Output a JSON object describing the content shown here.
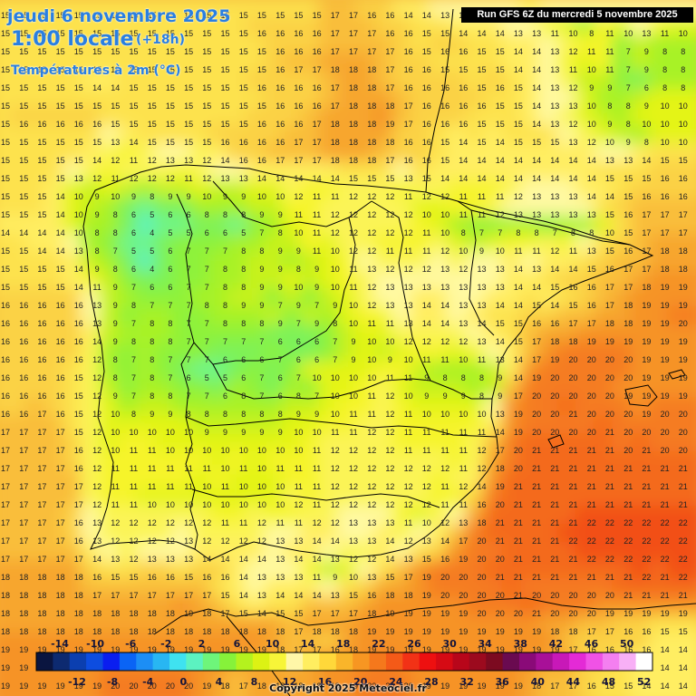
{
  "header": {
    "date": "jeudi 6 novembre 2025",
    "time": "1:00 locale",
    "lead": "(+18h)",
    "variable": "Températures à 2m (°C)"
  },
  "run": "Run GFS 6Z du mercredi 5 novembre 2025",
  "copyright": "Copyright 2025 Meteociel.fr",
  "legend": {
    "top_labels": [
      "-14",
      "-10",
      "-6",
      "-2",
      "2",
      "6",
      "10",
      "14",
      "18",
      "22",
      "26",
      "30",
      "34",
      "38",
      "42",
      "46",
      "50"
    ],
    "bottom_labels": [
      "-12",
      "-8",
      "-4",
      "0",
      "4",
      "8",
      "12",
      "16",
      "20",
      "24",
      "28",
      "32",
      "36",
      "40",
      "44",
      "48",
      "52"
    ],
    "colors": [
      "#0a1540",
      "#0d2a70",
      "#0b3fb0",
      "#0d4de0",
      "#0a1ef0",
      "#0a64f5",
      "#1c8ef5",
      "#28b6f2",
      "#3fe2f0",
      "#5cf2c0",
      "#6ef57a",
      "#86f23a",
      "#b4f21e",
      "#dcf214",
      "#f7f538",
      "#fff7a8",
      "#ffee60",
      "#ffd83a",
      "#f9b52a",
      "#f79622",
      "#f5781c",
      "#f45a18",
      "#f23216",
      "#ee1010",
      "#d60a14",
      "#b8061a",
      "#9c0a1e",
      "#7c0a20",
      "#6a0a50",
      "#8a0a78",
      "#a81098",
      "#c818b8",
      "#e42ad6",
      "#f052e6",
      "#f47ff0",
      "#f8b0f6",
      "#ffffff"
    ]
  },
  "temperature_grid": [
    "15 15 15 15 15 15 15 15 15 15 15 15 15 15 15 15 15 15 17 17 16 16 14 14 13 13 13 13 13 12 13 13 13 13 13 13 13 13",
    "15 15 15 15 15 15 15 15 15 15 15 15 15 15 16 16 16 16 17 17 17 16 16 15 15 14 14 14 13 13 11 10 8 11 10 13 11 10",
    "15 15 15 15 15 15 15 15 15 15 15 15 15 15 15 16 16 16 17 17 17 17 16 15 16 16 15 15 14 14 13 12 11 11 7 9 8 8",
    "15 15 15 15 15 15 15 15 15 15 15 15 15 15 15 16 17 17 18 18 18 17 16 16 15 15 15 15 14 14 13 11 10 11 7 9 8 8",
    "15 15 15 15 15 14 14 15 15 15 15 15 15 15 16 16 16 16 17 18 18 17 16 16 16 16 15 16 15 14 13 12 9 9 7 6 8 8",
    "15 15 15 15 15 15 15 15 15 15 15 15 15 15 15 16 16 16 17 18 18 18 17 16 16 16 16 15 15 14 13 13 10 8 8 9 10 10",
    "15 16 16 16 16 16 15 15 15 15 15 15 15 15 16 16 16 17 18 18 18 19 17 16 16 16 15 15 15 14 13 12 10 9 8 10 10 10",
    "15 15 15 15 15 15 13 14 15 15 15 15 16 16 16 16 17 17 18 18 18 18 16 16 15 14 15 14 15 15 15 13 12 10 9 8 10 10",
    "15 15 15 15 15 14 12 11 12 13 13 12 14 16 16 17 17 17 18 18 18 17 16 16 15 14 14 14 14 14 14 14 14 13 13 14 15 15",
    "15 15 15 15 13 12 11 12 12 12 11 12 13 13 14 14 14 14 14 15 15 15 13 15 14 14 14 14 14 14 14 14 14 15 15 15 16 16",
    "15 15 15 14 10 9 10 9 8 9 9 10 9 9 10 10 12 11 11 12 12 12 11 12 12 11 11 11 12 13 13 13 14 14 15 16 16 16",
    "15 15 15 14 10 9 8 6 5 6 6 8 8 8 9 9 11 11 12 12 12 12 12 10 10 11 11 12 13 13 13 13 13 15 16 17 17 17",
    "14 14 14 14 10 8 8 6 4 5 5 6 6 5 7 8 10 11 12 12 12 12 12 11 10 8 7 7 8 8 7 8 8 10 15 17 17 17",
    "15 15 14 14 13 8 7 5 5 6 7 7 7 8 8 9 9 11 10 12 12 11 11 11 12 10 9 10 11 11 12 11 13 15 16 17 18 18",
    "15 15 15 15 14 9 8 6 4 6 7 7 8 8 9 9 8 9 10 11 13 12 12 12 13 12 13 13 14 13 14 14 15 16 17 17 18 18",
    "15 15 15 15 14 11 9 7 6 6 7 7 8 8 9 9 10 9 10 11 12 13 13 13 13 13 13 13 14 14 15 16 16 17 17 18 19 19",
    "16 16 16 16 16 13 9 8 7 7 7 8 8 9 9 7 9 7 9 10 12 13 13 14 14 13 13 14 14 15 14 15 16 17 18 19 19 19",
    "16 16 16 16 16 13 9 7 8 8 7 7 8 8 8 9 7 9 8 10 11 11 13 14 14 13 14 15 15 16 16 17 17 18 18 19 19 20",
    "16 16 16 16 16 14 9 8 8 8 7 7 7 7 7 6 6 6 7 9 10 10 12 12 12 12 13 14 15 17 18 18 19 19 19 19 19 19",
    "16 16 16 16 16 12 8 7 8 7 7 7 6 6 6 7 6 6 7 9 10 9 10 11 11 10 11 13 14 17 19 20 20 20 20 19 19 19",
    "16 16 16 16 15 12 8 7 8 7 6 5 5 6 7 6 7 10 10 10 10 11 11 9 8 8 8 9 14 19 20 20 20 20 20 19 19 19",
    "16 16 16 16 15 12 9 7 8 8 7 7 6 8 7 6 8 7 10 10 11 12 10 9 9 9 8 9 17 20 20 20 20 20 19 19 19 19",
    "16 16 17 16 15 12 10 8 9 9 8 8 8 8 8 8 9 9 10 11 11 12 11 10 10 10 10 13 19 20 20 21 20 20 20 19 20 20",
    "17 17 17 17 15 12 10 10 10 10 10 9 9 9 9 9 10 10 11 11 12 12 11 11 11 11 11 14 19 20 20 20 20 21 20 20 20 20",
    "17 17 17 17 16 12 10 11 11 10 10 10 10 10 10 10 10 11 12 12 12 12 11 11 11 11 12 17 20 21 21 21 21 21 20 21 20 20",
    "17 17 17 17 16 12 11 11 11 11 11 11 10 11 10 11 11 11 12 12 12 12 12 12 12 11 12 18 20 21 21 21 21 21 21 21 21 21",
    "17 17 17 17 17 12 11 11 11 11 11 10 11 10 10 10 11 11 12 12 12 12 12 12 11 12 14 19 21 21 21 21 21 21 21 21 21 21",
    "17 17 17 17 17 12 11 11 10 10 10 10 10 10 10 10 12 11 12 12 12 12 12 12 11 11 16 20 21 21 21 21 21 21 21 21 21 21",
    "17 17 17 17 16 13 12 12 12 12 12 12 11 11 12 11 11 12 12 13 13 13 11 10 12 13 18 21 21 21 21 21 22 22 22 22 22 22",
    "17 17 17 17 16 13 12 12 12 12 13 12 12 12 12 13 13 14 14 13 13 14 12 13 14 17 20 21 21 21 21 22 22 22 22 22 22 22",
    "17 17 17 17 17 14 13 12 13 13 13 14 14 14 14 13 14 14 13 12 12 14 13 15 16 19 20 20 21 21 21 21 22 22 22 22 22 22",
    "18 18 18 18 18 16 15 15 16 16 15 16 16 14 13 13 13 11 9 10 13 15 17 19 20 20 20 21 21 21 21 21 21 21 21 22 21 22",
    "18 18 18 18 18 17 17 17 17 17 17 17 15 14 13 14 14 14 13 15 16 18 18 19 20 20 20 20 21 20 20 20 20 20 21 21 21 21",
    "18 18 18 18 18 18 18 18 18 18 19 18 17 15 14 15 15 17 17 17 18 19 19 19 19 19 20 20 20 21 20 20 20 19 19 19 19 19",
    "18 18 18 18 18 18 18 18 18 18 18 18 18 18 18 18 17 18 18 18 19 19 19 19 19 19 19 19 19 19 18 18 17 17 16 16 15 15",
    "19 19 19 19 19 19 19 19 19 19 19 19 19 19 19 18 17 17 16 18 19 19 19 19 19 19 19 19 19 19 19 17 16 16 16 16 14 14",
    "19 19 19 19 19 19 19 19 19 19 19 19 19 18 18 18 17 18 19 19 19 20 19 19 19 19 19 19 19 19 18 18 16 16 15 14 14 14",
    "19 19 19 19 19 19 20 20 20 20 20 19 18 17 18 18 18 18 19 19 20 20 20 19 19 19 19 19 19 18 17 17 16 15 15 14 14 14"
  ]
}
